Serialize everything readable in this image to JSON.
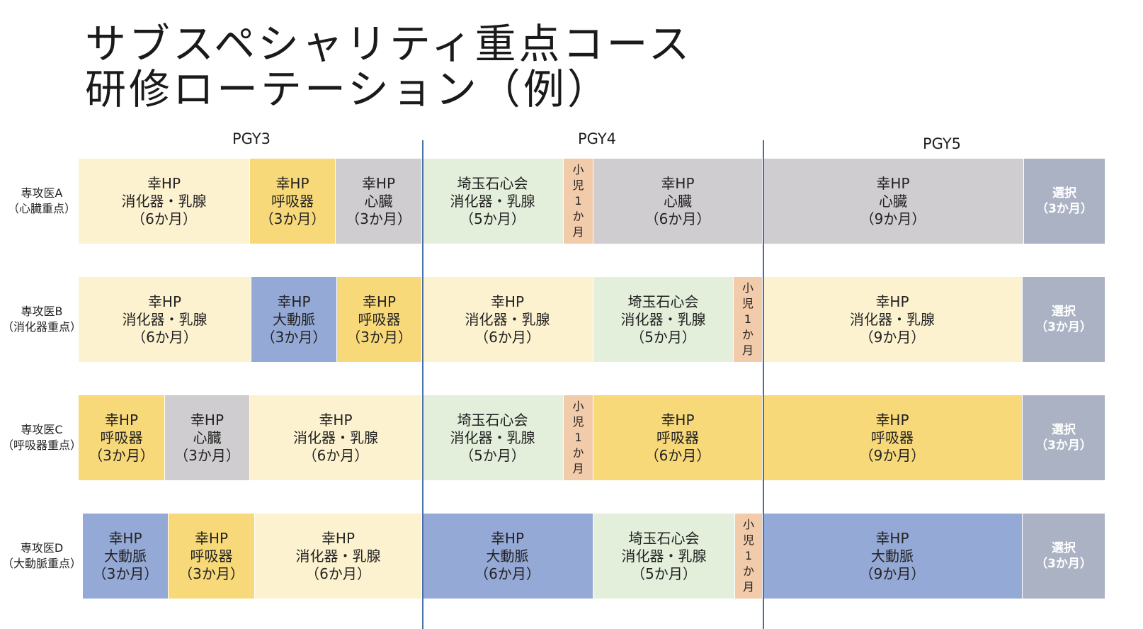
{
  "title": {
    "line1": "サブスペシャリティ重点コース",
    "line2": "研修ローテーション（例）"
  },
  "years": [
    "PGY3",
    "PGY4",
    "PGY5"
  ],
  "colors": {
    "digestive": "#fdf2d0",
    "respiratory": "#f8d979",
    "cardiac": "#cfcdcf",
    "aorta": "#95a9d6",
    "saitama": "#e3efdb",
    "pediatric": "#f2cbaa",
    "elective": "#aab2c4",
    "divider": "#4a6ea8"
  },
  "rows": [
    {
      "label": [
        "専攻医A",
        "（心臓重点）"
      ],
      "blocks": [
        {
          "type": "digestive",
          "lines": [
            "幸HP",
            "消化器・乳腺",
            "（6か月）"
          ]
        },
        {
          "type": "respiratory",
          "lines": [
            "幸HP",
            "呼吸器",
            "（3か月）"
          ]
        },
        {
          "type": "cardiac",
          "lines": [
            "幸HP",
            "心臓",
            "（3か月）"
          ]
        },
        {
          "type": "saitama",
          "lines": [
            "埼玉石心会",
            "消化器・乳腺",
            "（5か月）"
          ]
        },
        {
          "type": "pediatric",
          "lines": [
            "小",
            "児",
            "1",
            "か",
            "月"
          ]
        },
        {
          "type": "cardiac",
          "lines": [
            "幸HP",
            "心臓",
            "（6か月）"
          ]
        },
        {
          "type": "cardiac",
          "lines": [
            "幸HP",
            "心臓",
            "（9か月）"
          ]
        },
        {
          "type": "elective",
          "lines": [
            "選択",
            "（3か月）"
          ]
        }
      ]
    },
    {
      "label": [
        "専攻医B",
        "（消化器重点）"
      ],
      "blocks": [
        {
          "type": "digestive",
          "lines": [
            "幸HP",
            "消化器・乳腺",
            "（6か月）"
          ]
        },
        {
          "type": "aorta",
          "lines": [
            "幸HP",
            "大動脈",
            "（3か月）"
          ]
        },
        {
          "type": "respiratory",
          "lines": [
            "幸HP",
            "呼吸器",
            "（3か月）"
          ]
        },
        {
          "type": "digestive",
          "lines": [
            "幸HP",
            "消化器・乳腺",
            "（6か月）"
          ]
        },
        {
          "type": "saitama",
          "lines": [
            "埼玉石心会",
            "消化器・乳腺",
            "（5か月）"
          ]
        },
        {
          "type": "pediatric",
          "lines": [
            "小",
            "児",
            "1",
            "か",
            "月"
          ]
        },
        {
          "type": "digestive",
          "lines": [
            "幸HP",
            "消化器・乳腺",
            "（9か月）"
          ]
        },
        {
          "type": "elective",
          "lines": [
            "選択",
            "（3か月）"
          ]
        }
      ]
    },
    {
      "label": [
        "専攻医C",
        "（呼吸器重点）"
      ],
      "blocks": [
        {
          "type": "respiratory",
          "lines": [
            "幸HP",
            "呼吸器",
            "（3か月）"
          ]
        },
        {
          "type": "cardiac",
          "lines": [
            "幸HP",
            "心臓",
            "（3か月）"
          ]
        },
        {
          "type": "digestive",
          "lines": [
            "幸HP",
            "消化器・乳腺",
            "（6か月）"
          ]
        },
        {
          "type": "saitama",
          "lines": [
            "埼玉石心会",
            "消化器・乳腺",
            "（5か月）"
          ]
        },
        {
          "type": "pediatric",
          "lines": [
            "小",
            "児",
            "1",
            "か",
            "月"
          ]
        },
        {
          "type": "respiratory",
          "lines": [
            "幸HP",
            "呼吸器",
            "（6か月）"
          ]
        },
        {
          "type": "respiratory",
          "lines": [
            "幸HP",
            "呼吸器",
            "（9か月）"
          ]
        },
        {
          "type": "elective",
          "lines": [
            "選択",
            "（3か月）"
          ]
        }
      ]
    },
    {
      "label": [
        "専攻医D",
        "（大動脈重点）"
      ],
      "blocks": [
        {
          "type": "aorta",
          "lines": [
            "幸HP",
            "大動脈",
            "（3か月）"
          ]
        },
        {
          "type": "respiratory",
          "lines": [
            "幸HP",
            "呼吸器",
            "（3か月）"
          ]
        },
        {
          "type": "digestive",
          "lines": [
            "幸HP",
            "消化器・乳腺",
            "（6か月）"
          ]
        },
        {
          "type": "aorta",
          "lines": [
            "幸HP",
            "大動脈",
            "（6か月）"
          ]
        },
        {
          "type": "saitama",
          "lines": [
            "埼玉石心会",
            "消化器・乳腺",
            "（5か月）"
          ]
        },
        {
          "type": "pediatric",
          "lines": [
            "小",
            "児",
            "1",
            "か",
            "月"
          ]
        },
        {
          "type": "aorta",
          "lines": [
            "幸HP",
            "大動脈",
            "（9か月）"
          ]
        },
        {
          "type": "elective",
          "lines": [
            "選択",
            "（3か月）"
          ]
        }
      ]
    }
  ]
}
